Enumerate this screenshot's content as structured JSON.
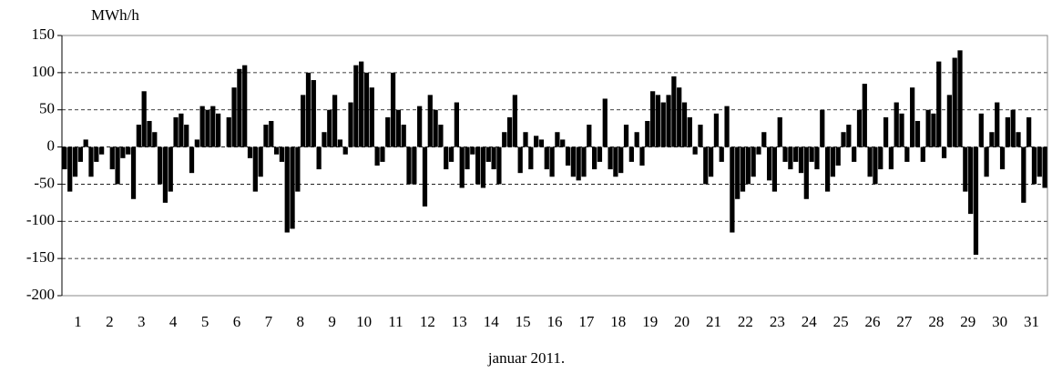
{
  "chart_data": {
    "type": "bar",
    "y_label": "MWh/h",
    "x_label": "januar 2011.",
    "color": "#000000",
    "grid": true,
    "ylim": [
      -200,
      150
    ],
    "yticks": [
      150,
      100,
      50,
      0,
      -50,
      -100,
      -150,
      -200
    ],
    "categories": [
      null,
      null,
      null,
      "1",
      null,
      null,
      null,
      null,
      null,
      "2",
      null,
      null,
      null,
      null,
      null,
      "3",
      null,
      null,
      null,
      null,
      null,
      "4",
      null,
      null,
      null,
      null,
      null,
      "5",
      null,
      null,
      null,
      null,
      null,
      "6",
      null,
      null,
      null,
      null,
      null,
      "7",
      null,
      null,
      null,
      null,
      null,
      "8",
      null,
      null,
      null,
      null,
      null,
      "9",
      null,
      null,
      null,
      null,
      null,
      "10",
      null,
      null,
      null,
      null,
      null,
      "11",
      null,
      null,
      null,
      null,
      null,
      "12",
      null,
      null,
      null,
      null,
      null,
      "13",
      null,
      null,
      null,
      null,
      null,
      "14",
      null,
      null,
      null,
      null,
      null,
      "15",
      null,
      null,
      null,
      null,
      null,
      "16",
      null,
      null,
      null,
      null,
      null,
      "17",
      null,
      null,
      null,
      null,
      null,
      "18",
      null,
      null,
      null,
      null,
      null,
      "19",
      null,
      null,
      null,
      null,
      null,
      "20",
      null,
      null,
      null,
      null,
      null,
      "21",
      null,
      null,
      null,
      null,
      null,
      "22",
      null,
      null,
      null,
      null,
      null,
      "23",
      null,
      null,
      null,
      null,
      null,
      "24",
      null,
      null,
      null,
      null,
      null,
      "25",
      null,
      null,
      null,
      null,
      null,
      "26",
      null,
      null,
      null,
      null,
      null,
      "27",
      null,
      null,
      null,
      null,
      null,
      "28",
      null,
      null,
      null,
      null,
      null,
      "29",
      null,
      null,
      null,
      null,
      null,
      "30",
      null,
      null,
      null,
      null,
      null,
      "31",
      null,
      null
    ],
    "values": [
      -30,
      -60,
      -40,
      -20,
      10,
      -40,
      -20,
      -10,
      0,
      -30,
      -50,
      -15,
      -10,
      -70,
      30,
      75,
      35,
      20,
      -50,
      -75,
      -60,
      40,
      45,
      30,
      -35,
      10,
      55,
      50,
      55,
      45,
      0,
      40,
      80,
      105,
      110,
      -15,
      -60,
      -40,
      30,
      35,
      -10,
      -20,
      -115,
      -110,
      -60,
      70,
      100,
      90,
      -30,
      20,
      50,
      70,
      10,
      -10,
      60,
      110,
      115,
      100,
      80,
      -25,
      -20,
      40,
      100,
      50,
      30,
      -50,
      -50,
      55,
      -80,
      70,
      50,
      30,
      -30,
      -20,
      60,
      -55,
      -30,
      -10,
      -50,
      -55,
      -20,
      -30,
      -50,
      20,
      40,
      70,
      -35,
      20,
      -30,
      15,
      10,
      -30,
      -40,
      20,
      10,
      -25,
      -40,
      -45,
      -40,
      30,
      -30,
      -20,
      65,
      -30,
      -40,
      -35,
      30,
      -20,
      20,
      -25,
      35,
      75,
      70,
      60,
      70,
      95,
      80,
      60,
      40,
      -10,
      30,
      -50,
      -40,
      45,
      -20,
      55,
      -115,
      -70,
      -60,
      -50,
      -40,
      -10,
      20,
      -45,
      -60,
      40,
      -20,
      -30,
      -20,
      -35,
      -70,
      -20,
      -30,
      50,
      -60,
      -40,
      -25,
      20,
      30,
      -20,
      50,
      85,
      -40,
      -50,
      -30,
      40,
      -30,
      60,
      45,
      -20,
      80,
      35,
      -20,
      50,
      45,
      115,
      -15,
      70,
      120,
      130,
      -60,
      -90,
      -145,
      45,
      -40,
      20,
      60,
      -30,
      40,
      50,
      20,
      -75,
      40,
      -50,
      -40,
      -55
    ]
  }
}
